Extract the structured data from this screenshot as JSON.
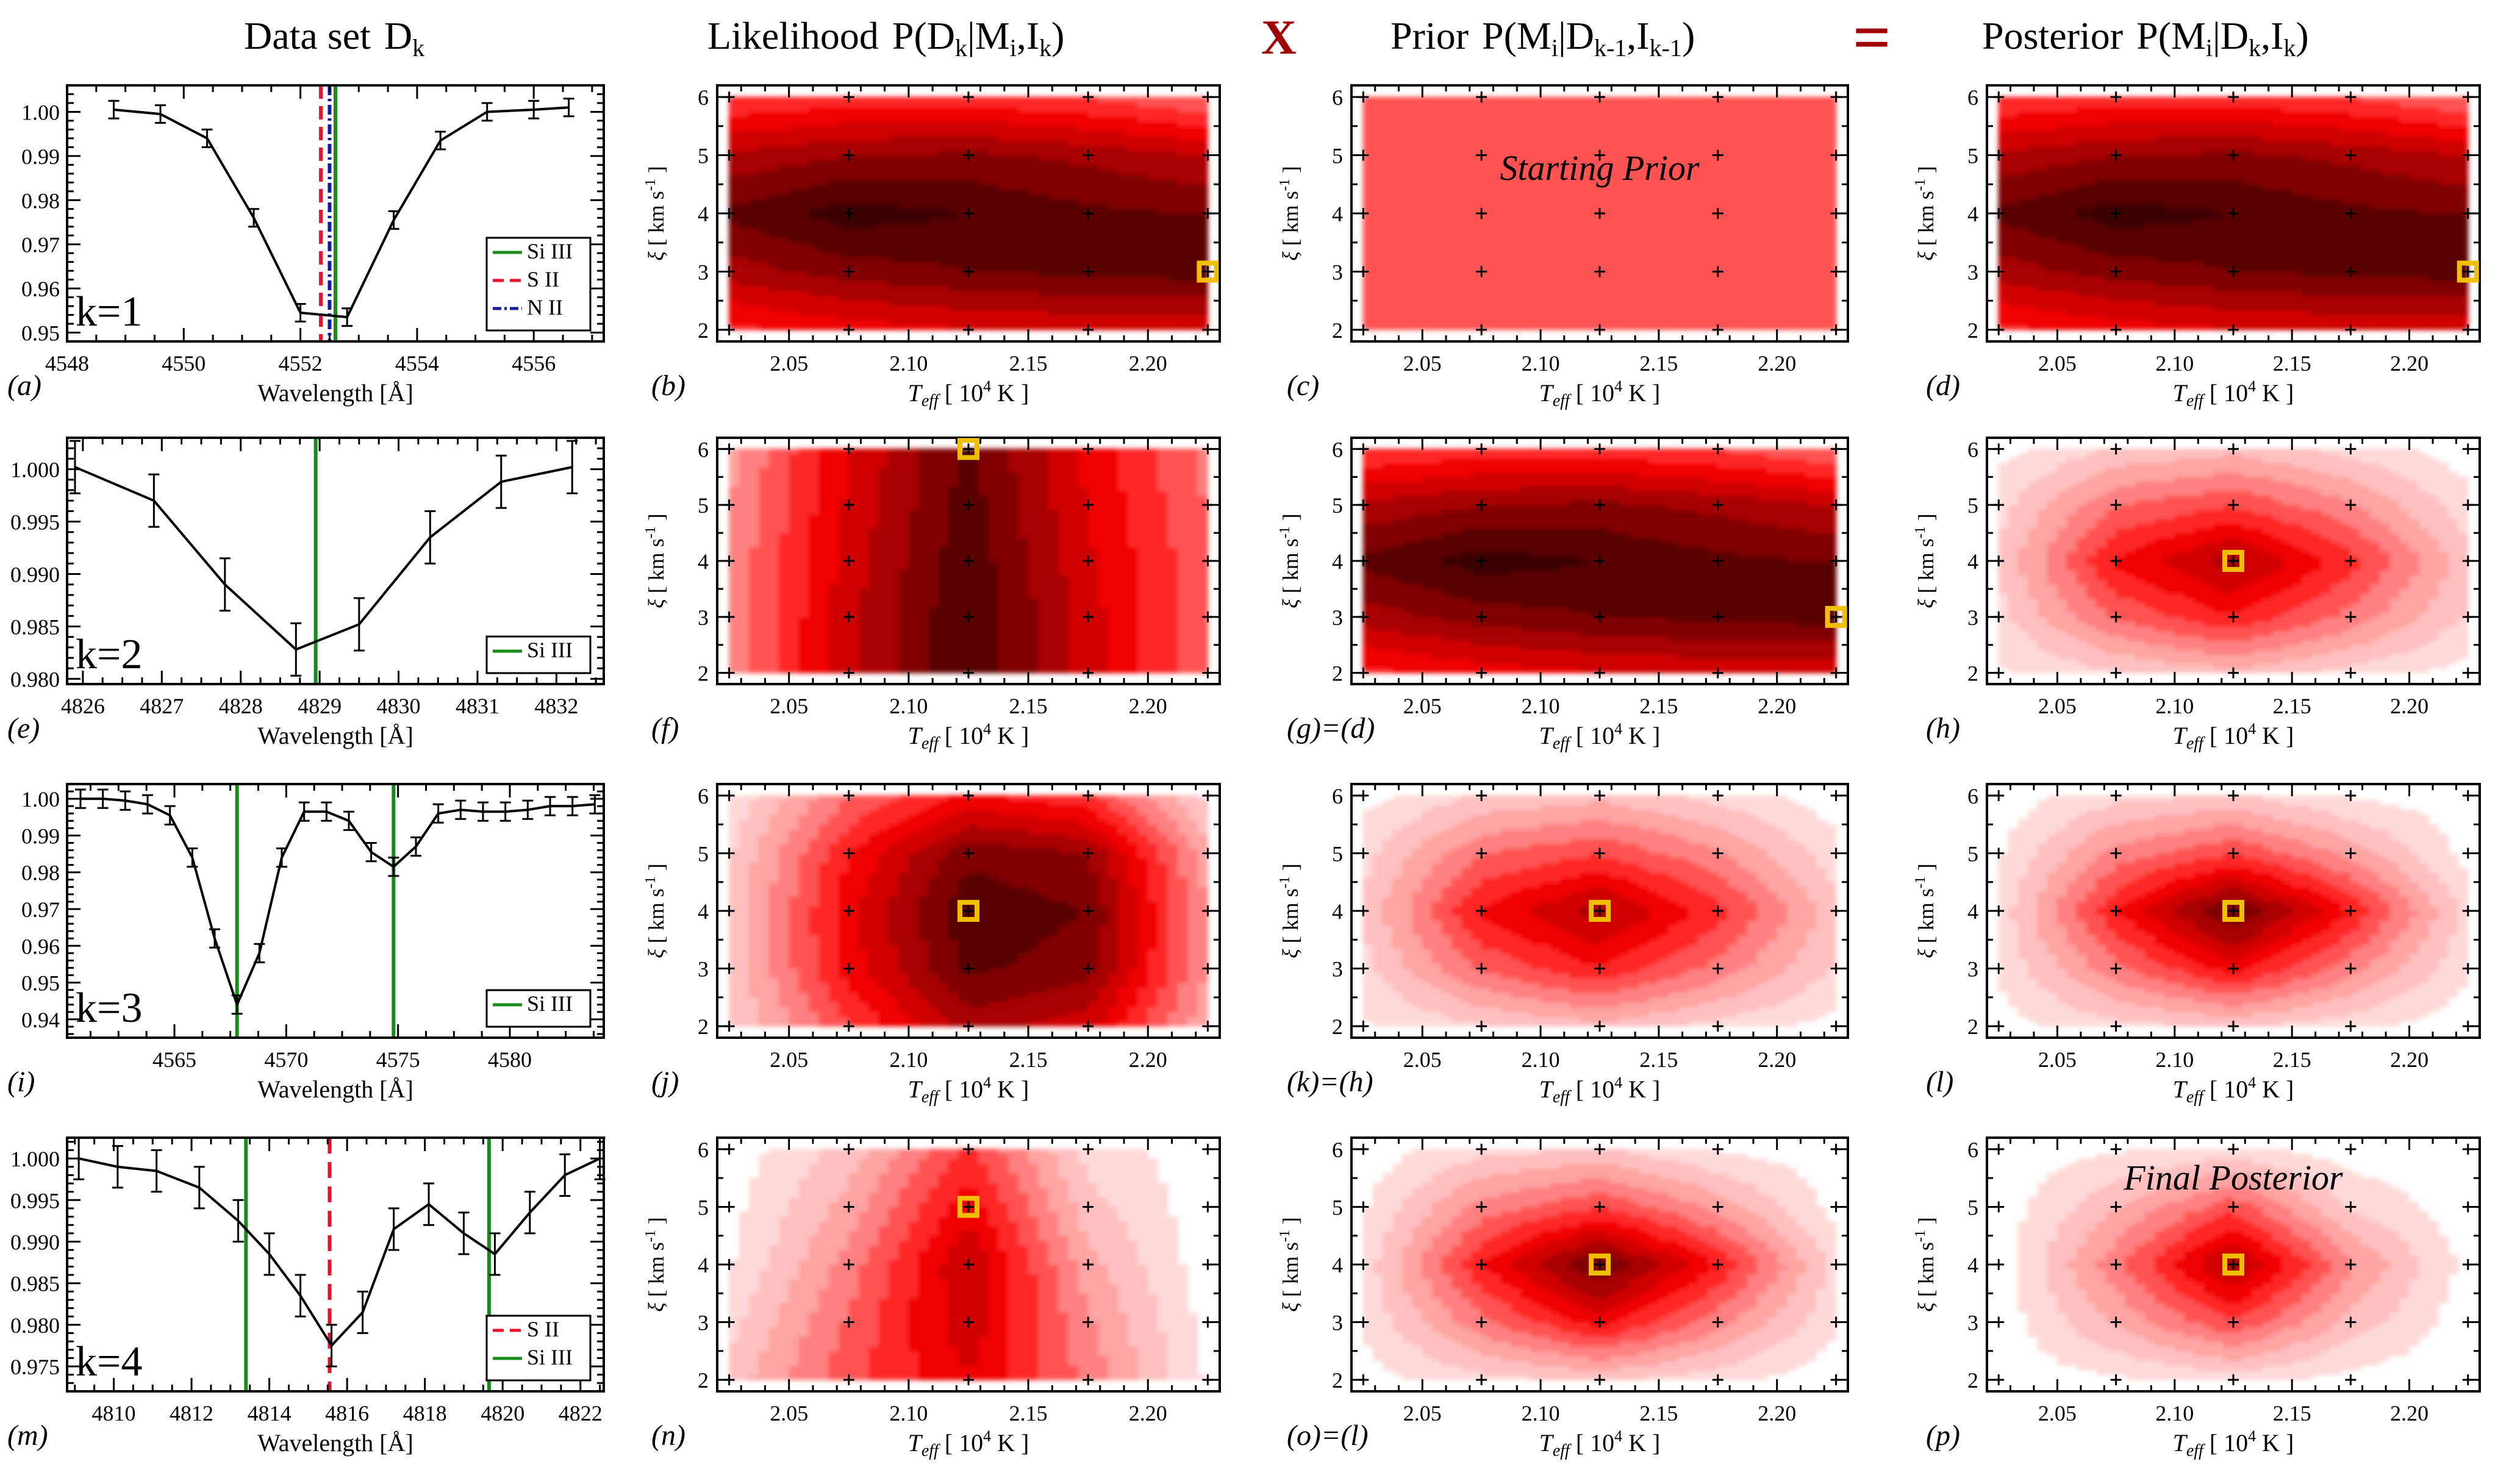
{
  "header": {
    "data_set": "Data set",
    "data_sym": "D",
    "data_sub": "k",
    "likelihood": "Likelihood",
    "likelihood_expr": "P(D",
    "prior": "Prior",
    "posterior": "Posterior",
    "times": "X",
    "equals": "="
  },
  "colors": {
    "si_iii": "#1a8a1a",
    "s_ii": "#e8102a",
    "n_ii": "#1a1aa0",
    "marker": "#f0c000",
    "equation_symbol": "#a00000",
    "contour_palette": [
      "#ffd9d9",
      "#ffbfbf",
      "#ffa3a3",
      "#ff8080",
      "#ff5252",
      "#ff2828",
      "#f00000",
      "#d00000",
      "#a80000",
      "#800000",
      "#5a0000",
      "#3a0000"
    ]
  },
  "axis_labels": {
    "wavelength": "Wavelength [Å]",
    "teff": "T_eff [ 10^4 K ]",
    "xi": "ξ [ km s^-1 ]"
  },
  "contour_axes": {
    "x_ticks": [
      "2.05",
      "2.10",
      "2.15",
      "2.20"
    ],
    "y_ticks": [
      "2",
      "3",
      "4",
      "5",
      "6"
    ],
    "grid_teff": [
      2.025,
      2.075,
      2.125,
      2.175,
      2.225
    ],
    "grid_xi": [
      2,
      3,
      4,
      5,
      6
    ],
    "xlim": [
      2.02,
      2.23
    ],
    "ylim": [
      1.8,
      6.2
    ]
  },
  "chart_data": [
    {
      "type": "line",
      "panel_label": "(a)",
      "k_label": "k=1",
      "xlabel": "Wavelength [Å]",
      "xlim": [
        4548,
        4557.2
      ],
      "ylim": [
        0.948,
        1.006
      ],
      "x_ticks": [
        "4548",
        "4550",
        "4552",
        "4554",
        "4556"
      ],
      "x_tick_values": [
        4548,
        4550,
        4552,
        4554,
        4556
      ],
      "y_ticks": [
        "0.95",
        "0.96",
        "0.97",
        "0.98",
        "0.99",
        "1.00"
      ],
      "y_tick_values": [
        0.95,
        0.96,
        0.97,
        0.98,
        0.99,
        1.0
      ],
      "x": [
        4548.8,
        4549.6,
        4550.4,
        4551.2,
        4552.0,
        4552.8,
        4553.6,
        4554.4,
        4555.2,
        4556.0,
        4556.6
      ],
      "y": [
        1.0005,
        0.9995,
        0.994,
        0.976,
        0.9545,
        0.9535,
        0.9755,
        0.9935,
        1.0,
        1.0005,
        1.001
      ],
      "err": [
        0.002,
        0.002,
        0.002,
        0.002,
        0.002,
        0.002,
        0.002,
        0.002,
        0.002,
        0.002,
        0.002
      ],
      "lines": [
        {
          "x": 4552.6,
          "color": "#1a8a1a",
          "dash": ""
        },
        {
          "x": 4552.35,
          "color": "#e8102a",
          "dash": "22,12"
        },
        {
          "x": 4552.5,
          "color": "#1a1aa0",
          "dash": "16,6,4,6"
        }
      ],
      "legend": [
        {
          "label": "Si III",
          "color": "#1a8a1a",
          "dash": ""
        },
        {
          "label": "S II",
          "color": "#e8102a",
          "dash": "18,10"
        },
        {
          "label": "N II",
          "color": "#1a1aa0",
          "dash": "14,5,4,5"
        }
      ]
    },
    {
      "type": "line",
      "panel_label": "(e)",
      "k_label": "k=2",
      "xlabel": "Wavelength [Å]",
      "xlim": [
        4825.8,
        4832.6
      ],
      "ylim": [
        0.9795,
        1.003
      ],
      "x_ticks": [
        "4826",
        "4827",
        "4828",
        "4829",
        "4830",
        "4831",
        "4832"
      ],
      "x_tick_values": [
        4826,
        4827,
        4828,
        4829,
        4830,
        4831,
        4832
      ],
      "y_ticks": [
        "0.980",
        "0.985",
        "0.990",
        "0.995",
        "1.000"
      ],
      "y_tick_values": [
        0.98,
        0.985,
        0.99,
        0.995,
        1.0
      ],
      "x": [
        4825.9,
        4826.9,
        4827.8,
        4828.7,
        4829.5,
        4830.4,
        4831.3,
        4832.2
      ],
      "y": [
        1.0002,
        0.997,
        0.989,
        0.9828,
        0.9852,
        0.9935,
        0.9988,
        1.0002
      ],
      "err": [
        0.0025,
        0.0025,
        0.0025,
        0.0025,
        0.0025,
        0.0025,
        0.0025,
        0.0025
      ],
      "lines": [
        {
          "x": 4828.95,
          "color": "#1a8a1a",
          "dash": ""
        }
      ],
      "legend": [
        {
          "label": "Si III",
          "color": "#1a8a1a",
          "dash": ""
        }
      ]
    },
    {
      "type": "line",
      "panel_label": "(i)",
      "k_label": "k=3",
      "xlabel": "Wavelength [Å]",
      "xlim": [
        4560.2,
        4584.2
      ],
      "ylim": [
        0.935,
        1.004
      ],
      "x_ticks": [
        "4565",
        "4570",
        "4575",
        "4580"
      ],
      "x_tick_values": [
        4565,
        4570,
        4575,
        4580
      ],
      "y_ticks": [
        "0.94",
        "0.95",
        "0.96",
        "0.97",
        "0.98",
        "0.99",
        "1.00"
      ],
      "y_tick_values": [
        0.94,
        0.95,
        0.96,
        0.97,
        0.98,
        0.99,
        1.0
      ],
      "x": [
        4560.8,
        4561.8,
        4562.8,
        4563.8,
        4564.8,
        4565.8,
        4566.8,
        4567.8,
        4568.8,
        4569.8,
        4570.8,
        4571.8,
        4572.8,
        4573.8,
        4574.8,
        4575.8,
        4576.8,
        4577.8,
        4578.8,
        4579.8,
        4580.8,
        4581.8,
        4582.8,
        4583.8
      ],
      "y": [
        1.0,
        1.0,
        0.9995,
        0.9985,
        0.9955,
        0.984,
        0.962,
        0.944,
        0.958,
        0.984,
        0.9965,
        0.9965,
        0.994,
        0.9855,
        0.9815,
        0.987,
        0.996,
        0.997,
        0.9965,
        0.9965,
        0.997,
        0.998,
        0.998,
        0.9985
      ],
      "err": [
        0.0025,
        0.0025,
        0.0025,
        0.0025,
        0.0025,
        0.0025,
        0.0025,
        0.0025,
        0.0025,
        0.0025,
        0.0025,
        0.0025,
        0.0025,
        0.0025,
        0.0025,
        0.0025,
        0.0025,
        0.0025,
        0.0025,
        0.0025,
        0.0025,
        0.0025,
        0.0025,
        0.0025
      ],
      "lines": [
        {
          "x": 4567.8,
          "color": "#1a8a1a",
          "dash": ""
        },
        {
          "x": 4574.8,
          "color": "#1a8a1a",
          "dash": ""
        }
      ],
      "legend": [
        {
          "label": "Si III",
          "color": "#1a8a1a",
          "dash": ""
        }
      ]
    },
    {
      "type": "line",
      "panel_label": "(m)",
      "k_label": "k=4",
      "xlabel": "Wavelength [Å]",
      "xlim": [
        4808.8,
        4822.6
      ],
      "ylim": [
        0.972,
        1.0025
      ],
      "x_ticks": [
        "4810",
        "4812",
        "4814",
        "4816",
        "4818",
        "4820",
        "4822"
      ],
      "x_tick_values": [
        4810,
        4812,
        4814,
        4816,
        4818,
        4820,
        4822
      ],
      "y_ticks": [
        "0.975",
        "0.980",
        "0.985",
        "0.990",
        "0.995",
        "1.000"
      ],
      "y_tick_values": [
        0.975,
        0.98,
        0.985,
        0.99,
        0.995,
        1.0
      ],
      "x": [
        4809.1,
        4810.1,
        4811.1,
        4812.2,
        4813.2,
        4814.0,
        4814.8,
        4815.6,
        4816.4,
        4817.2,
        4818.1,
        4819.0,
        4819.8,
        4820.7,
        4821.6,
        4822.5
      ],
      "y": [
        1.0,
        0.999,
        0.9985,
        0.9965,
        0.9925,
        0.9885,
        0.9835,
        0.9775,
        0.9815,
        0.9915,
        0.9945,
        0.991,
        0.9885,
        0.9935,
        0.998,
        1.0
      ],
      "err": [
        0.0025,
        0.0025,
        0.0025,
        0.0025,
        0.0025,
        0.0025,
        0.0025,
        0.0025,
        0.0025,
        0.0025,
        0.0025,
        0.0025,
        0.0025,
        0.0025,
        0.0025,
        0.0025
      ],
      "lines": [
        {
          "x": 4813.4,
          "color": "#1a8a1a",
          "dash": ""
        },
        {
          "x": 4815.55,
          "color": "#e8102a",
          "dash": "26,14"
        },
        {
          "x": 4819.65,
          "color": "#1a8a1a",
          "dash": ""
        }
      ],
      "legend": [
        {
          "label": "S II",
          "color": "#e8102a",
          "dash": "18,10"
        },
        {
          "label": "Si III",
          "color": "#1a8a1a",
          "dash": ""
        }
      ]
    },
    {
      "type": "heatmap",
      "panel_label": "(b)",
      "kind": "likelihood",
      "values": [
        [
          0.5,
          0.56,
          0.6,
          0.62,
          0.62
        ],
        [
          0.72,
          0.8,
          0.84,
          0.86,
          0.88
        ],
        [
          0.86,
          0.96,
          0.92,
          0.86,
          0.84
        ],
        [
          0.7,
          0.76,
          0.78,
          0.74,
          0.68
        ],
        [
          0.44,
          0.48,
          0.48,
          0.44,
          0.36
        ]
      ],
      "marker": [
        2.225,
        3
      ]
    },
    {
      "type": "heatmap",
      "panel_label": "(c)",
      "kind": "prior",
      "values": [
        [
          0.4,
          0.4,
          0.4,
          0.4,
          0.4
        ],
        [
          0.4,
          0.4,
          0.4,
          0.4,
          0.4
        ],
        [
          0.4,
          0.4,
          0.4,
          0.4,
          0.4
        ],
        [
          0.4,
          0.4,
          0.4,
          0.4,
          0.4
        ],
        [
          0.4,
          0.4,
          0.4,
          0.4,
          0.4
        ]
      ],
      "text": "Starting Prior"
    },
    {
      "type": "heatmap",
      "panel_label": "(d)",
      "kind": "posterior",
      "values": [
        [
          0.5,
          0.56,
          0.6,
          0.62,
          0.62
        ],
        [
          0.72,
          0.8,
          0.84,
          0.86,
          0.88
        ],
        [
          0.86,
          0.96,
          0.92,
          0.86,
          0.84
        ],
        [
          0.7,
          0.76,
          0.78,
          0.74,
          0.68
        ],
        [
          0.44,
          0.48,
          0.48,
          0.44,
          0.36
        ]
      ],
      "marker": [
        2.225,
        3
      ]
    },
    {
      "type": "heatmap",
      "panel_label": "(f)",
      "kind": "likelihood",
      "values": [
        [
          0.3,
          0.66,
          0.92,
          0.64,
          0.38
        ],
        [
          0.3,
          0.66,
          0.92,
          0.64,
          0.38
        ],
        [
          0.3,
          0.64,
          0.9,
          0.62,
          0.38
        ],
        [
          0.28,
          0.62,
          0.88,
          0.6,
          0.36
        ],
        [
          0.26,
          0.6,
          0.86,
          0.58,
          0.34
        ]
      ],
      "marker": [
        2.125,
        6
      ]
    },
    {
      "type": "heatmap",
      "panel_label": "(g)=(d)",
      "kind": "prior",
      "values": [
        [
          0.5,
          0.56,
          0.6,
          0.62,
          0.62
        ],
        [
          0.72,
          0.8,
          0.84,
          0.86,
          0.88
        ],
        [
          0.86,
          0.96,
          0.92,
          0.86,
          0.84
        ],
        [
          0.7,
          0.76,
          0.78,
          0.74,
          0.68
        ],
        [
          0.44,
          0.48,
          0.48,
          0.44,
          0.36
        ]
      ],
      "marker": [
        2.225,
        3
      ]
    },
    {
      "type": "heatmap",
      "panel_label": "(h)",
      "kind": "posterior",
      "values": [
        [
          0.04,
          0.12,
          0.18,
          0.1,
          0.02
        ],
        [
          0.1,
          0.38,
          0.52,
          0.34,
          0.12
        ],
        [
          0.14,
          0.54,
          0.72,
          0.48,
          0.16
        ],
        [
          0.1,
          0.36,
          0.44,
          0.3,
          0.08
        ],
        [
          0.02,
          0.14,
          0.18,
          0.1,
          0.0
        ]
      ],
      "marker": [
        2.125,
        4
      ]
    },
    {
      "type": "heatmap",
      "panel_label": "(j)",
      "kind": "likelihood",
      "values": [
        [
          0.12,
          0.44,
          0.72,
          0.64,
          0.22
        ],
        [
          0.14,
          0.56,
          0.86,
          0.8,
          0.28
        ],
        [
          0.14,
          0.58,
          0.9,
          0.84,
          0.28
        ],
        [
          0.12,
          0.52,
          0.82,
          0.76,
          0.24
        ],
        [
          0.06,
          0.36,
          0.54,
          0.46,
          0.1
        ]
      ],
      "marker": [
        2.125,
        4
      ]
    },
    {
      "type": "heatmap",
      "panel_label": "(k)=(h)",
      "kind": "prior",
      "values": [
        [
          0.04,
          0.12,
          0.18,
          0.1,
          0.02
        ],
        [
          0.1,
          0.38,
          0.52,
          0.34,
          0.12
        ],
        [
          0.14,
          0.54,
          0.72,
          0.48,
          0.16
        ],
        [
          0.1,
          0.36,
          0.44,
          0.3,
          0.08
        ],
        [
          0.02,
          0.14,
          0.18,
          0.1,
          0.0
        ]
      ],
      "marker": [
        2.125,
        4
      ]
    },
    {
      "type": "heatmap",
      "panel_label": "(l)",
      "kind": "posterior",
      "values": [
        [
          0.02,
          0.1,
          0.14,
          0.08,
          0.0
        ],
        [
          0.06,
          0.34,
          0.56,
          0.32,
          0.06
        ],
        [
          0.08,
          0.52,
          0.86,
          0.52,
          0.1
        ],
        [
          0.04,
          0.32,
          0.44,
          0.26,
          0.02
        ],
        [
          0.0,
          0.1,
          0.14,
          0.04,
          0.0
        ]
      ],
      "marker": [
        2.125,
        4
      ]
    },
    {
      "type": "heatmap",
      "panel_label": "(n)",
      "kind": "likelihood",
      "values": [
        [
          0.16,
          0.42,
          0.6,
          0.34,
          0.04
        ],
        [
          0.1,
          0.38,
          0.66,
          0.3,
          0.02
        ],
        [
          0.04,
          0.32,
          0.68,
          0.24,
          0.0
        ],
        [
          0.02,
          0.24,
          0.58,
          0.16,
          0.0
        ],
        [
          0.0,
          0.16,
          0.46,
          0.1,
          0.0
        ]
      ],
      "marker": [
        2.125,
        5
      ]
    },
    {
      "type": "heatmap",
      "panel_label": "(o)=(l)",
      "kind": "prior",
      "values": [
        [
          0.02,
          0.1,
          0.14,
          0.08,
          0.0
        ],
        [
          0.06,
          0.34,
          0.56,
          0.32,
          0.06
        ],
        [
          0.08,
          0.52,
          0.86,
          0.52,
          0.1
        ],
        [
          0.04,
          0.32,
          0.44,
          0.26,
          0.02
        ],
        [
          0.0,
          0.1,
          0.14,
          0.04,
          0.0
        ]
      ],
      "marker": [
        2.125,
        4
      ]
    },
    {
      "type": "heatmap",
      "panel_label": "(p)",
      "kind": "posterior",
      "values": [
        [
          0.0,
          0.04,
          0.08,
          0.02,
          0.0
        ],
        [
          0.0,
          0.22,
          0.44,
          0.18,
          0.0
        ],
        [
          0.0,
          0.34,
          0.72,
          0.3,
          0.02
        ],
        [
          0.0,
          0.2,
          0.42,
          0.12,
          0.0
        ],
        [
          0.0,
          0.04,
          0.08,
          0.0,
          0.0
        ]
      ],
      "marker": [
        2.125,
        4
      ],
      "text": "Final Posterior"
    }
  ]
}
